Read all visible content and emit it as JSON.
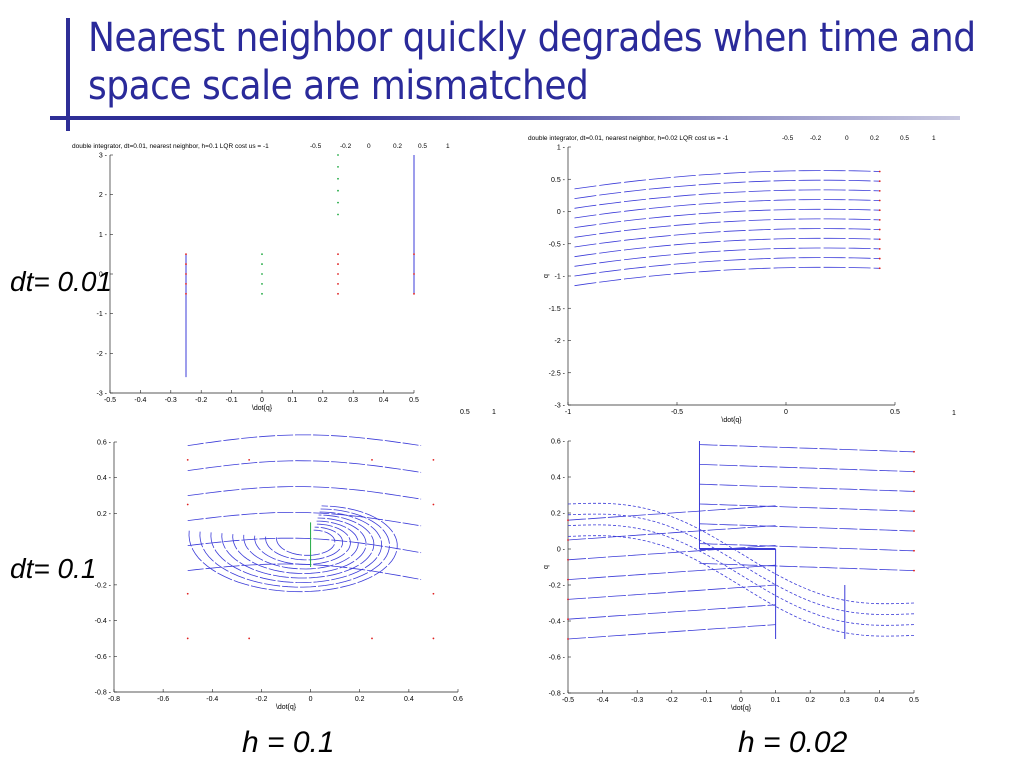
{
  "slide": {
    "title": "Nearest neighbor quickly degrades when time and space scale are mismatched",
    "row_labels": [
      "dt= 0.01",
      "dt= 0.1"
    ],
    "col_labels": [
      "h = 0.1",
      "h = 0.02"
    ],
    "colors": {
      "title": "#2a2a9a",
      "trajectory": "#3b3bd8",
      "start_point": "#e02020",
      "goal_point": "#22aa44"
    }
  },
  "chart_data": [
    {
      "type": "line",
      "panel": "dt=0.01, h=0.1",
      "title": "double integrator, dt=0.01, nearest neighbor, h=0.1 LQR cost  us = -1",
      "header_ticks": [
        "-0.5",
        "-0.2",
        "0",
        "0.2",
        "0.5",
        "1"
      ],
      "xlabel": "\\dot{q}",
      "xlim": [
        -0.5,
        0.5
      ],
      "ylim": [
        -3,
        3
      ],
      "xticks": [
        -0.5,
        -0.4,
        -0.3,
        -0.2,
        -0.1,
        0,
        0.1,
        0.2,
        0.3,
        0.4,
        0.5
      ],
      "yticks": [
        -3,
        -2,
        -1,
        0,
        1,
        2,
        3
      ],
      "extra_labels": [
        "0.5",
        "1"
      ],
      "series": [
        {
          "kind": "vline",
          "x": -0.25,
          "y": [
            -2.6,
            0.5
          ]
        },
        {
          "kind": "vline",
          "x": 0.5,
          "y": [
            -0.5,
            3
          ]
        },
        {
          "kind": "points",
          "x": [
            -0.25,
            -0.25,
            -0.25,
            -0.25,
            -0.25,
            0.25,
            0.25,
            0.25,
            0.25,
            0.25,
            0.5,
            0.5,
            0.5
          ],
          "y": [
            0.5,
            0.25,
            0,
            -0.25,
            -0.5,
            0.5,
            0.25,
            0,
            -0.25,
            -0.5,
            0.5,
            0,
            -0.5
          ]
        },
        {
          "kind": "goal",
          "x": [
            0,
            0,
            0,
            0,
            0,
            0.25,
            0.25,
            0.25,
            0.25,
            0.25,
            0.25
          ],
          "y": [
            0.5,
            0.25,
            0,
            -0.25,
            -0.5,
            3,
            2.7,
            2.4,
            2.1,
            1.8,
            1.5
          ]
        }
      ]
    },
    {
      "type": "line",
      "panel": "dt=0.01, h=0.02",
      "title": "double integrator, dt=0.01, nearest neighbor, h=0.02 LQR cost  us = -1",
      "header_ticks": [
        "-0.5",
        "-0.2",
        "0",
        "0.2",
        "0.5",
        "1"
      ],
      "xlabel": "\\dot{q}",
      "ylabel": "q",
      "xlim": [
        -1,
        0.5
      ],
      "ylim": [
        -3,
        1
      ],
      "xticks": [
        -1,
        -0.5,
        0,
        0.5
      ],
      "yticks": [
        1,
        0.5,
        0,
        -0.5,
        -1,
        -1.5,
        -2,
        -2.5,
        -3
      ],
      "extra_labels": [
        "1"
      ],
      "series": [
        {
          "kind": "curves",
          "offsets": [
            0.6,
            0.45,
            0.3,
            0.15,
            0,
            -0.15,
            -0.3,
            -0.45,
            -0.6,
            -0.75,
            -0.9
          ]
        }
      ]
    },
    {
      "type": "line",
      "panel": "dt=0.1, h=0.1",
      "xlim": [
        -0.8,
        0.6
      ],
      "ylim": [
        -0.8,
        0.6
      ],
      "xticks": [
        -0.8,
        -0.6,
        -0.4,
        -0.2,
        0,
        0.2,
        0.4,
        0.6
      ],
      "yticks": [
        0.6,
        0.4,
        0.2,
        -0.2,
        -0.4,
        -0.6,
        -0.8
      ],
      "xlabel": "\\dot{q}",
      "series": [
        {
          "kind": "spiral"
        }
      ]
    },
    {
      "type": "line",
      "panel": "dt=0.1, h=0.02",
      "xlim": [
        -0.5,
        0.5
      ],
      "ylim": [
        -0.8,
        0.6
      ],
      "xticks": [
        -0.5,
        -0.4,
        -0.3,
        -0.2,
        -0.1,
        0,
        0.1,
        0.2,
        0.3,
        0.4,
        0.5
      ],
      "yticks": [
        0.6,
        0.4,
        0.2,
        0,
        -0.2,
        -0.4,
        -0.6,
        -0.8
      ],
      "xlabel": "\\dot{q}",
      "ylabel": "q",
      "series": [
        {
          "kind": "flows"
        }
      ]
    }
  ]
}
